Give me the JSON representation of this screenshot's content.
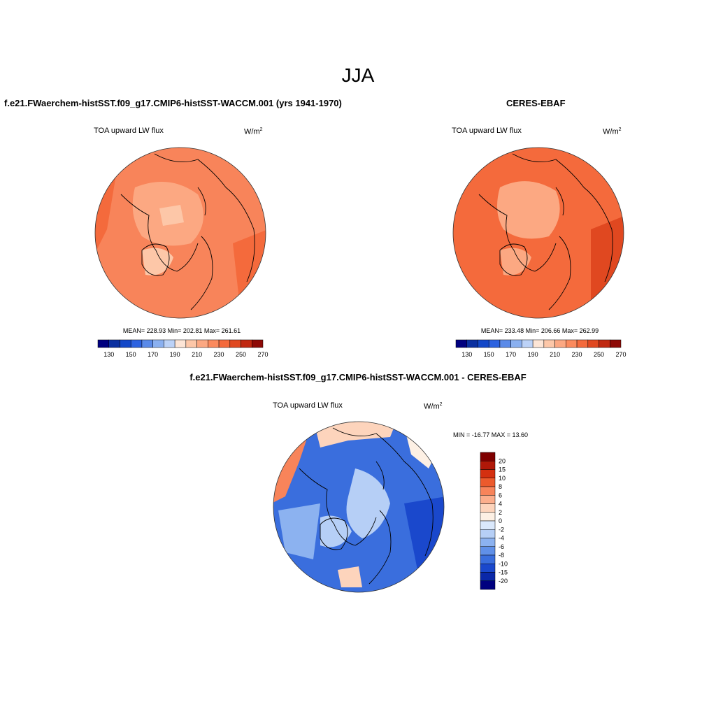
{
  "figure": {
    "title": "JJA"
  },
  "panels": [
    {
      "title": "f.e21.FWaerchem-histSST.f09_g17.CMIP6-histSST-WACCM.001 (yrs 1941-1970)",
      "variable": "TOA upward LW flux",
      "units": "W/m",
      "units_exp": "2",
      "stats": {
        "mean": "228.93",
        "min": "202.81",
        "max": "261.61"
      },
      "stats_text": "MEAN= 228.93  Min= 202.81  Max= 261.61"
    },
    {
      "title": "CERES-EBAF",
      "variable": "TOA upward LW flux",
      "units": "W/m",
      "units_exp": "2",
      "stats": {
        "mean": "233.48",
        "min": "206.66",
        "max": "262.99"
      },
      "stats_text": "MEAN= 233.48  Min= 206.66  Max= 262.99"
    },
    {
      "title": "f.e21.FWaerchem-histSST.f09_g17.CMIP6-histSST-WACCM.001 - CERES-EBAF",
      "variable": "TOA upward LW flux",
      "units": "W/m",
      "units_exp": "2",
      "stats": {
        "min": "-16.77",
        "max": "13.60"
      },
      "stats_text": "MIN = -16.77 MAX =  13.60"
    }
  ],
  "colorbars": {
    "absolute": {
      "tick_labels": [
        "130",
        "150",
        "170",
        "190",
        "210",
        "230",
        "250",
        "270"
      ],
      "colors": [
        "#00007f",
        "#0a2fa0",
        "#1247c8",
        "#2c62e0",
        "#5a8ae8",
        "#8ab0f0",
        "#bcd2f7",
        "#fde5d6",
        "#fdc7a8",
        "#fca882",
        "#fb8a5d",
        "#f46a3c",
        "#e04820",
        "#c02810",
        "#8e0a06"
      ]
    },
    "difference": {
      "tick_labels": [
        "20",
        "15",
        "10",
        "8",
        "6",
        "4",
        "2",
        "0",
        "-2",
        "-4",
        "-6",
        "-8",
        "-10",
        "-15",
        "-20"
      ],
      "colors": [
        "#7f0000",
        "#b01808",
        "#d43010",
        "#ec5a2c",
        "#f8845a",
        "#fcae8c",
        "#fdd4bc",
        "#fdf0e4",
        "#dae8fb",
        "#b6cff6",
        "#8cb2f0",
        "#6090e8",
        "#3a6edd",
        "#1a48cc",
        "#0a28a8",
        "#00007f"
      ]
    }
  },
  "map_colors": {
    "model_base": "#f8845a",
    "model_light": "#fca882",
    "model_pale": "#fdc7a8",
    "model_warm": "#f46a3c",
    "obs_base": "#f46a3c",
    "obs_light": "#fca882",
    "obs_warm": "#e04820",
    "diff_base": "#3a6edd",
    "diff_light": "#b6cff6",
    "diff_dark": "#1a48cc",
    "diff_pos": "#f8845a"
  }
}
